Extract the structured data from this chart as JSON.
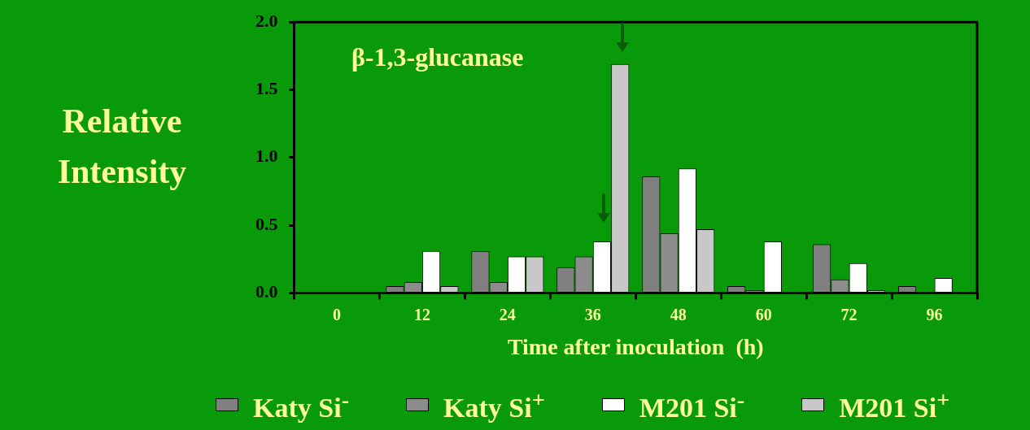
{
  "chart_data": {
    "type": "bar",
    "ylabel": "Relative Intensity",
    "xlabel": "Time after inoculation  (h)",
    "annotations": [
      "β-1,3-glucanase"
    ],
    "categories": [
      "0",
      "12",
      "24",
      "36",
      "48",
      "60",
      "72",
      "96"
    ],
    "series": [
      {
        "name": "Katy Si$^{-}$",
        "color": "#7f7f7f",
        "values": [
          0,
          0.05,
          0.31,
          0.19,
          0.86,
          0.05,
          0.36,
          0.05
        ]
      },
      {
        "name": "Katy Si$^{+}$",
        "color": "#8c8c8c",
        "values": [
          0,
          0.08,
          0.08,
          0.27,
          0.44,
          0.02,
          0.1,
          0
        ]
      },
      {
        "name": "M201 Si$^{-}$",
        "color": "#ffffff",
        "values": [
          0,
          0.31,
          0.27,
          0.38,
          0.92,
          0.38,
          0.22,
          0.11
        ]
      },
      {
        "name": "M201 Si$^{+}$",
        "color": "#c8c8c8",
        "values": [
          0,
          0.05,
          0.27,
          1.69,
          0.47,
          0,
          0.02,
          0
        ]
      }
    ],
    "ylim": [
      0,
      2
    ],
    "yticks": [
      {
        "value": 0,
        "label": "0.0"
      },
      {
        "value": 0.5,
        "label": "0.5"
      },
      {
        "value": 1,
        "label": "1.0"
      },
      {
        "value": 1.5,
        "label": "1.5"
      },
      {
        "value": 2,
        "label": "2.0"
      }
    ],
    "grid": false,
    "legend": "bottom"
  }
}
